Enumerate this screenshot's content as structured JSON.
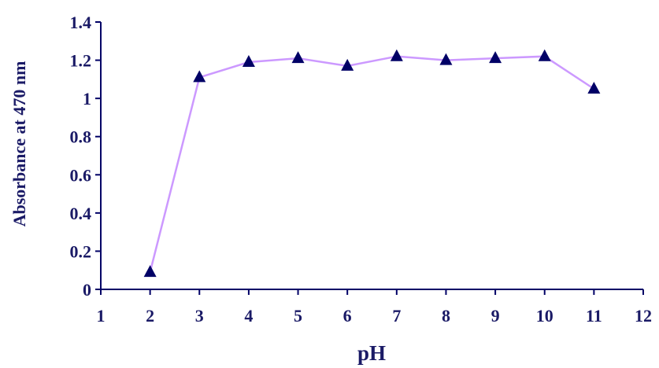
{
  "chart_data": {
    "type": "line",
    "title": "",
    "xlabel": "pH",
    "ylabel": "Absorbance  at 470 nm",
    "xlim": [
      1,
      12
    ],
    "ylim": [
      0,
      1.4
    ],
    "x_ticks": [
      1,
      2,
      3,
      4,
      5,
      6,
      7,
      8,
      9,
      10,
      11,
      12
    ],
    "y_ticks": [
      0,
      0.2,
      0.4,
      0.6,
      0.8,
      1,
      1.2,
      1.4
    ],
    "x_tick_labels": [
      "1",
      "2",
      "3",
      "4",
      "5",
      "6",
      "7",
      "8",
      "9",
      "10",
      "11",
      "12"
    ],
    "y_tick_labels": [
      "0",
      "0.2",
      "0.4",
      "0.6",
      "0.8",
      "1",
      "1.2",
      "1.4"
    ],
    "grid": false,
    "legend": "none",
    "series": [
      {
        "x": [
          2,
          3,
          4,
          5,
          6,
          7,
          8,
          9,
          10,
          11
        ],
        "values": [
          0.09,
          1.11,
          1.19,
          1.21,
          1.17,
          1.22,
          1.2,
          1.21,
          1.22,
          1.05
        ],
        "line_color": "#cc99ff",
        "marker": "triangle",
        "marker_color": "#000066"
      }
    ],
    "axis_color": "#000066",
    "text_color": "#1a1a66"
  }
}
